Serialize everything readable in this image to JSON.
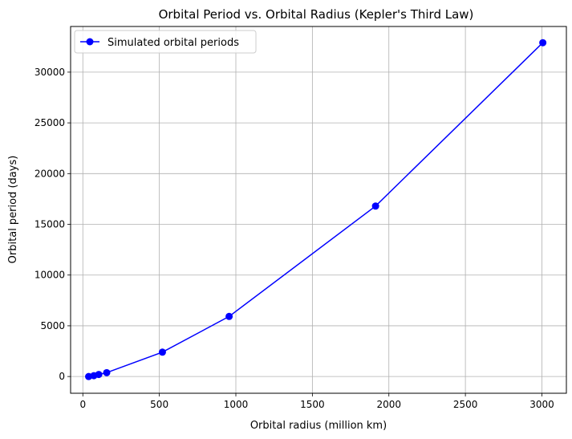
{
  "chart_data": {
    "type": "line",
    "title": "Orbital Period vs. Orbital Radius (Kepler's Third Law)",
    "xlabel": "Orbital radius (million km)",
    "ylabel": "Orbital period (days)",
    "xlim": [
      -80,
      3160
    ],
    "ylim": [
      -1650,
      34500
    ],
    "xticks": [
      0,
      500,
      1000,
      1500,
      2000,
      2500,
      3000
    ],
    "yticks": [
      0,
      5000,
      10000,
      15000,
      20000,
      25000,
      30000
    ],
    "grid": true,
    "legend_position": "top-left",
    "series": [
      {
        "name": "Simulated orbital periods",
        "color": "#0000ff",
        "marker": "circle",
        "x": [
          38,
          72,
          104,
          156,
          520,
          956,
          1913,
          3006
        ],
        "y": [
          0,
          85,
          200,
          380,
          2400,
          5920,
          16800,
          32900
        ]
      }
    ]
  }
}
